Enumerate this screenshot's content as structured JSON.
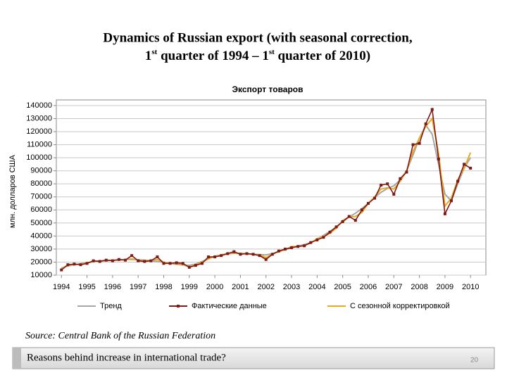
{
  "slide": {
    "title_line1": "Dynamics of Russian export (with seasonal correction,",
    "title_line2": [
      "1",
      "st",
      " quarter of 1994 – 1",
      "st",
      " quarter of 2010)"
    ],
    "source": "Source: Central Bank of the Russian Federation",
    "footer_text": "Reasons behind increase in international trade?",
    "page_number": "20"
  },
  "chart_data": {
    "type": "line",
    "title": "Экспорт товаров",
    "y_label": "млн. долларов США",
    "xlim": [
      1993.8,
      2010.6
    ],
    "xticks": [
      1994,
      1995,
      1996,
      1997,
      1998,
      1999,
      2000,
      2001,
      2002,
      2003,
      2004,
      2005,
      2006,
      2007,
      2008,
      2009,
      2010
    ],
    "ylim": [
      10000,
      140000
    ],
    "yticks": [
      10000,
      20000,
      30000,
      40000,
      50000,
      60000,
      70000,
      80000,
      90000,
      100000,
      110000,
      120000,
      130000,
      140000
    ],
    "grid": true,
    "legend": "bottom",
    "x": [
      1994,
      1994.25,
      1994.5,
      1994.75,
      1995,
      1995.25,
      1995.5,
      1995.75,
      1996,
      1996.25,
      1996.5,
      1996.75,
      1997,
      1997.25,
      1997.5,
      1997.75,
      1998,
      1998.25,
      1998.5,
      1998.75,
      1999,
      1999.25,
      1999.5,
      1999.75,
      2000,
      2000.25,
      2000.5,
      2000.75,
      2001,
      2001.25,
      2001.5,
      2001.75,
      2002,
      2002.25,
      2002.5,
      2002.75,
      2003,
      2003.25,
      2003.5,
      2003.75,
      2004,
      2004.25,
      2004.5,
      2004.75,
      2005,
      2005.25,
      2005.5,
      2005.75,
      2006,
      2006.25,
      2006.5,
      2006.75,
      2007,
      2007.25,
      2007.5,
      2007.75,
      2008,
      2008.25,
      2008.5,
      2008.75,
      2009,
      2009.25,
      2009.5,
      2009.75,
      2010
    ],
    "series": [
      {
        "name": "Тренд",
        "color": "#a6a6a6",
        "marker": false,
        "values": [
          15500,
          17000,
          18000,
          18800,
          19500,
          20300,
          21000,
          21300,
          21500,
          21800,
          22000,
          22000,
          21800,
          21500,
          21000,
          20500,
          19800,
          19000,
          18300,
          17800,
          17500,
          18500,
          20500,
          22500,
          24500,
          25500,
          26300,
          26800,
          26800,
          26400,
          26000,
          25800,
          25500,
          26500,
          28000,
          29500,
          31000,
          32300,
          33500,
          35000,
          37500,
          40500,
          43500,
          47000,
          51000,
          54500,
          57500,
          61000,
          65000,
          69500,
          73500,
          76500,
          78500,
          83000,
          90000,
          102000,
          115000,
          125000,
          118000,
          95000,
          72000,
          67000,
          80000,
          92000,
          100000
        ]
      },
      {
        "name": "Фактические данные",
        "color": "#7f1a1a",
        "marker": true,
        "values": [
          14000,
          18000,
          18500,
          18000,
          19000,
          21000,
          20500,
          21500,
          21000,
          22000,
          21500,
          25000,
          21000,
          20500,
          21000,
          24000,
          19000,
          19000,
          19500,
          19000,
          16000,
          17500,
          19000,
          24000,
          24000,
          25000,
          26500,
          28000,
          26000,
          26500,
          26000,
          25000,
          22000,
          26000,
          28500,
          30000,
          31000,
          32000,
          32500,
          35000,
          37000,
          39000,
          43000,
          47000,
          51000,
          55000,
          52000,
          60000,
          65000,
          69000,
          79000,
          80000,
          72000,
          84000,
          89000,
          110000,
          111000,
          126000,
          137000,
          99000,
          57000,
          67000,
          82000,
          95000,
          92000
        ]
      },
      {
        "name": "С сезонной корректировкой",
        "color": "#e8a820",
        "marker": false,
        "values": [
          15000,
          17500,
          18000,
          18500,
          19500,
          20500,
          21000,
          21000,
          21500,
          21500,
          22000,
          22500,
          21500,
          21000,
          21500,
          22000,
          20000,
          19000,
          19000,
          18000,
          16500,
          18000,
          20000,
          22500,
          24500,
          25500,
          26500,
          27000,
          26500,
          26500,
          26000,
          25500,
          23500,
          26000,
          28000,
          29500,
          32000,
          32000,
          33000,
          34500,
          38000,
          39500,
          42000,
          46000,
          52000,
          54500,
          55000,
          58000,
          65000,
          70000,
          76000,
          77000,
          76000,
          82000,
          90000,
          105000,
          115000,
          124000,
          130000,
          103000,
          63000,
          69000,
          83000,
          92000,
          104000
        ]
      }
    ]
  }
}
